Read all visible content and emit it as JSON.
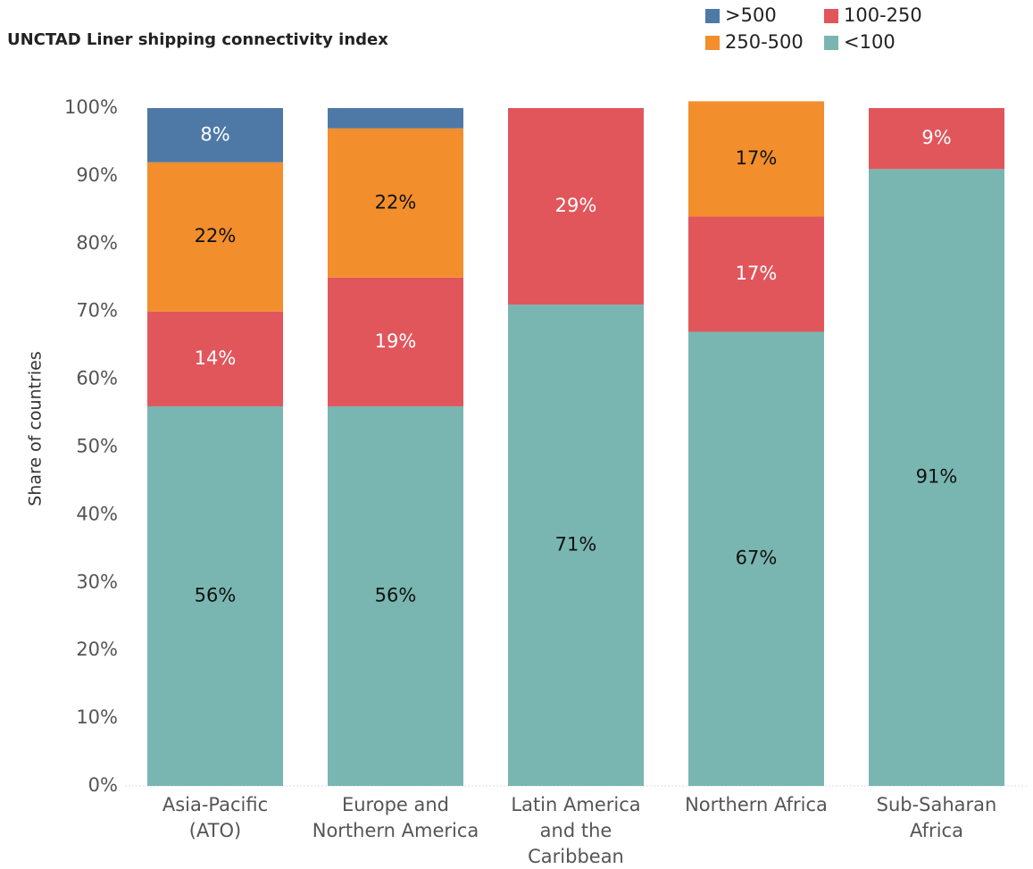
{
  "chart_data": {
    "type": "stacked_bar",
    "title": "UNCTAD Liner shipping connectivity index",
    "y_label": "Share of countries",
    "categories": [
      "Asia-Pacific (ATO)",
      "Europe and Northern America",
      "Latin America and the Caribbean",
      "Northern Africa",
      "Sub-Saharan Africa"
    ],
    "series": [
      {
        "name": "<100",
        "color": "#79b6b1",
        "label_color": "#111111",
        "values": [
          56,
          56,
          71,
          67,
          91
        ],
        "value_labels": [
          "56%",
          "56%",
          "71%",
          "67%",
          "91%"
        ]
      },
      {
        "name": "100-250",
        "color": "#e1565b",
        "label_color": "#ffffff",
        "values": [
          14,
          19,
          29,
          17,
          9
        ],
        "value_labels": [
          "14%",
          "19%",
          "29%",
          "17%",
          "9%"
        ]
      },
      {
        "name": "250-500",
        "color": "#f28e2c",
        "label_color": "#111111",
        "values": [
          22,
          22,
          0,
          17,
          0
        ],
        "value_labels": [
          "22%",
          "22%",
          null,
          "17%",
          null
        ]
      },
      {
        "name": ">500",
        "color": "#4e79a7",
        "label_color": "#ffffff",
        "values": [
          8,
          3,
          0,
          0,
          0
        ],
        "value_labels": [
          "8%",
          null,
          null,
          null,
          null
        ]
      }
    ],
    "ylim": [
      0,
      100
    ],
    "yticks": [
      {
        "value": 0,
        "label": "0%"
      },
      {
        "value": 10,
        "label": "10%"
      },
      {
        "value": 20,
        "label": "20%"
      },
      {
        "value": 30,
        "label": "30%"
      },
      {
        "value": 40,
        "label": "40%"
      },
      {
        "value": 50,
        "label": "50%"
      },
      {
        "value": 60,
        "label": "60%"
      },
      {
        "value": 70,
        "label": "70%"
      },
      {
        "value": 80,
        "label": "80%"
      },
      {
        "value": 90,
        "label": "90%"
      },
      {
        "value": 100,
        "label": "100%"
      }
    ],
    "grid": false,
    "legend": "top-right"
  }
}
